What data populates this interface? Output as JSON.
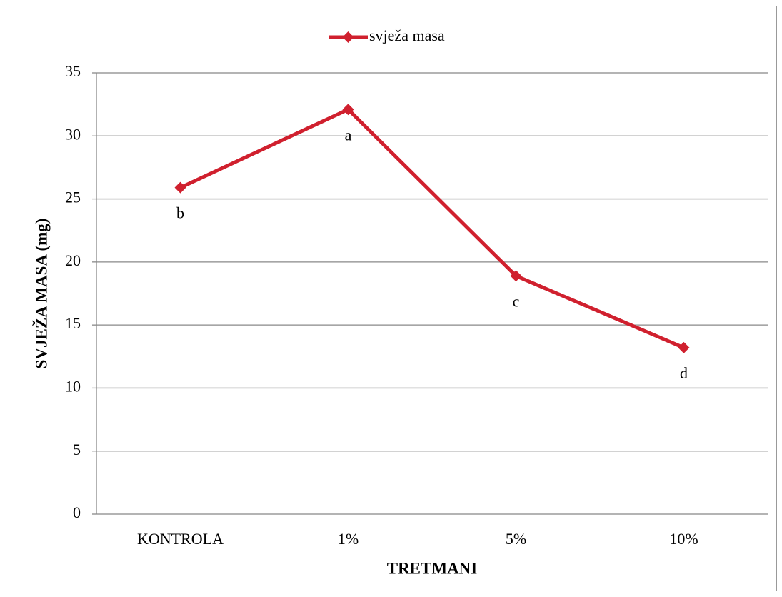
{
  "chart_data": {
    "type": "line",
    "y_label": "SVJEŽA MASA (mg)",
    "x_label": "TRETMANI",
    "categories": [
      "KONTROLA",
      "1%",
      "5%",
      "10%"
    ],
    "series": [
      {
        "name": "svježa masa",
        "color": "#d0202e",
        "values": [
          25.9,
          32.1,
          18.9,
          13.2
        ]
      }
    ],
    "point_labels": [
      "b",
      "a",
      "c",
      "d"
    ],
    "ylim": [
      0,
      35
    ],
    "yticks": [
      0,
      5,
      10,
      15,
      20,
      25,
      30,
      35
    ],
    "grid": true,
    "legend": "top"
  }
}
